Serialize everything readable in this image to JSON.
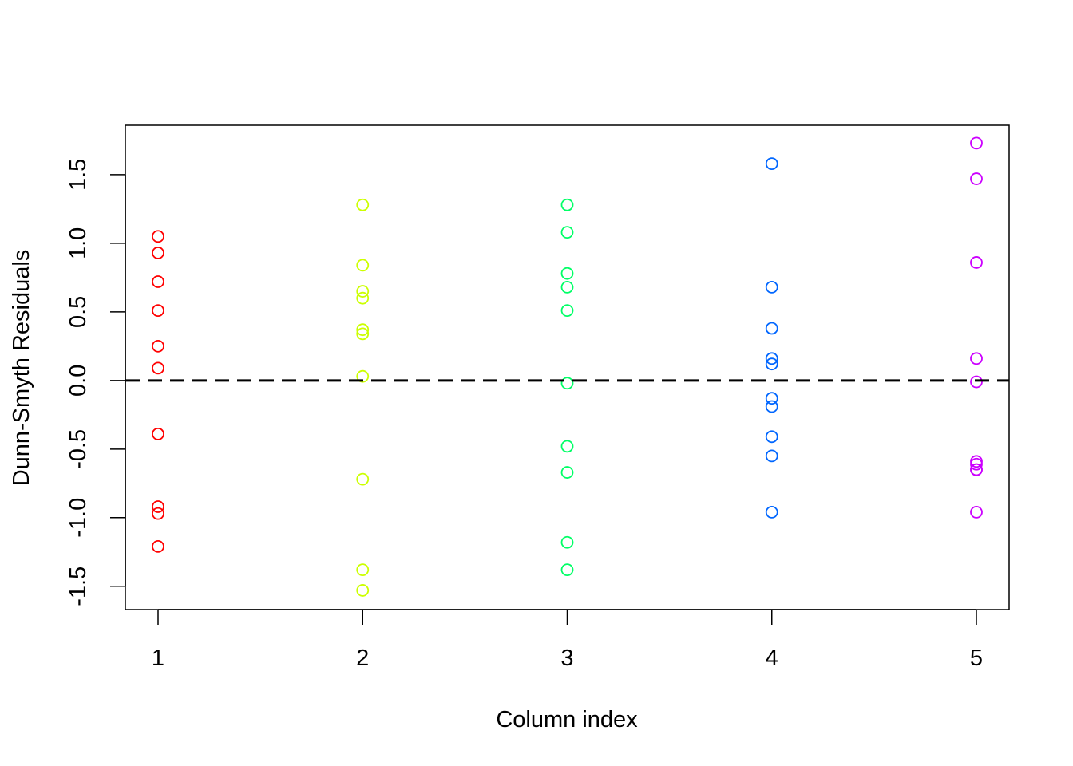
{
  "chart_data": {
    "type": "scatter",
    "xlabel": "Column index",
    "ylabel": "Dunn-Smyth Residuals",
    "xlim": [
      0.84,
      5.16
    ],
    "ylim": [
      -1.67,
      1.86
    ],
    "x_ticks": [
      1,
      2,
      3,
      4,
      5
    ],
    "x_tick_labels": [
      "1",
      "2",
      "3",
      "4",
      "5"
    ],
    "y_ticks": [
      -1.5,
      -1.0,
      -0.5,
      0.0,
      0.5,
      1.0,
      1.5
    ],
    "y_tick_labels": [
      "-1.5",
      "-1.0",
      "-0.5",
      "0.0",
      "0.5",
      "1.0",
      "1.5"
    ],
    "grid": false,
    "reference_line": {
      "y": 0,
      "style": "dashed",
      "color": "#000000"
    },
    "series": [
      {
        "x": 1,
        "color": "#FF0000",
        "values": [
          1.05,
          0.93,
          0.72,
          0.51,
          0.25,
          0.09,
          -0.39,
          -0.92,
          -0.97,
          -1.21
        ]
      },
      {
        "x": 2,
        "color": "#CCFF00",
        "values": [
          1.28,
          0.84,
          0.65,
          0.6,
          0.37,
          0.34,
          0.03,
          -0.72,
          -1.38,
          -1.53
        ]
      },
      {
        "x": 3,
        "color": "#00FF66",
        "values": [
          1.28,
          1.08,
          0.78,
          0.68,
          0.51,
          -0.02,
          -0.48,
          -0.67,
          -1.18,
          -1.38
        ]
      },
      {
        "x": 4,
        "color": "#0066FF",
        "values": [
          1.58,
          0.68,
          0.38,
          0.16,
          0.12,
          -0.13,
          -0.19,
          -0.41,
          -0.55,
          -0.96
        ]
      },
      {
        "x": 5,
        "color": "#CC00FF",
        "values": [
          1.73,
          1.47,
          0.86,
          0.16,
          -0.01,
          -0.59,
          -0.61,
          -0.65,
          -0.65,
          -0.96
        ]
      }
    ]
  }
}
